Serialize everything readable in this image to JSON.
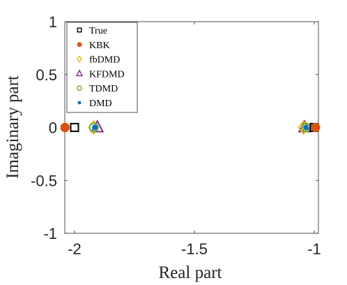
{
  "chart_data": {
    "type": "scatter",
    "xlabel": "Real part",
    "ylabel": "Imaginary part",
    "xlim": [
      -2.04,
      -0.99
    ],
    "ylim": [
      -1,
      1
    ],
    "xticks": [
      -2,
      -1.5,
      -1
    ],
    "xtick_labels": [
      "-2",
      "-1.5",
      "-1"
    ],
    "yticks": [
      1,
      0.5,
      0,
      -0.5,
      -1
    ],
    "ytick_labels": [
      "1",
      "0.5",
      "0",
      "-0.5",
      "-1"
    ],
    "grid": false,
    "legend_position": "top-left",
    "series": [
      {
        "name": "True",
        "marker": "square",
        "color": "#000000",
        "filled": false,
        "points": [
          [
            -2.0,
            0
          ],
          [
            -1.0,
            0
          ]
        ]
      },
      {
        "name": "KBK",
        "marker": "circle",
        "color": "#D95319",
        "filled": true,
        "points": [
          [
            -2.04,
            0
          ],
          [
            -0.995,
            0
          ]
        ]
      },
      {
        "name": "fbDMD",
        "marker": "diamond",
        "color": "#EDB120",
        "filled": false,
        "points": [
          [
            -1.92,
            0
          ],
          [
            -1.045,
            0
          ]
        ]
      },
      {
        "name": "KFDMD",
        "marker": "triangle",
        "color": "#7E2F8E",
        "filled": false,
        "points": [
          [
            -1.905,
            0
          ],
          [
            -1.04,
            0
          ]
        ]
      },
      {
        "name": "TDMD",
        "marker": "circle",
        "color": "#77AC30",
        "filled": false,
        "points": [
          [
            -1.92,
            0
          ],
          [
            -1.035,
            0
          ]
        ]
      },
      {
        "name": "DMD",
        "marker": "asterisk",
        "color": "#0072BD",
        "filled": false,
        "points": [
          [
            -1.915,
            0
          ],
          [
            -1.035,
            0
          ]
        ]
      }
    ]
  }
}
